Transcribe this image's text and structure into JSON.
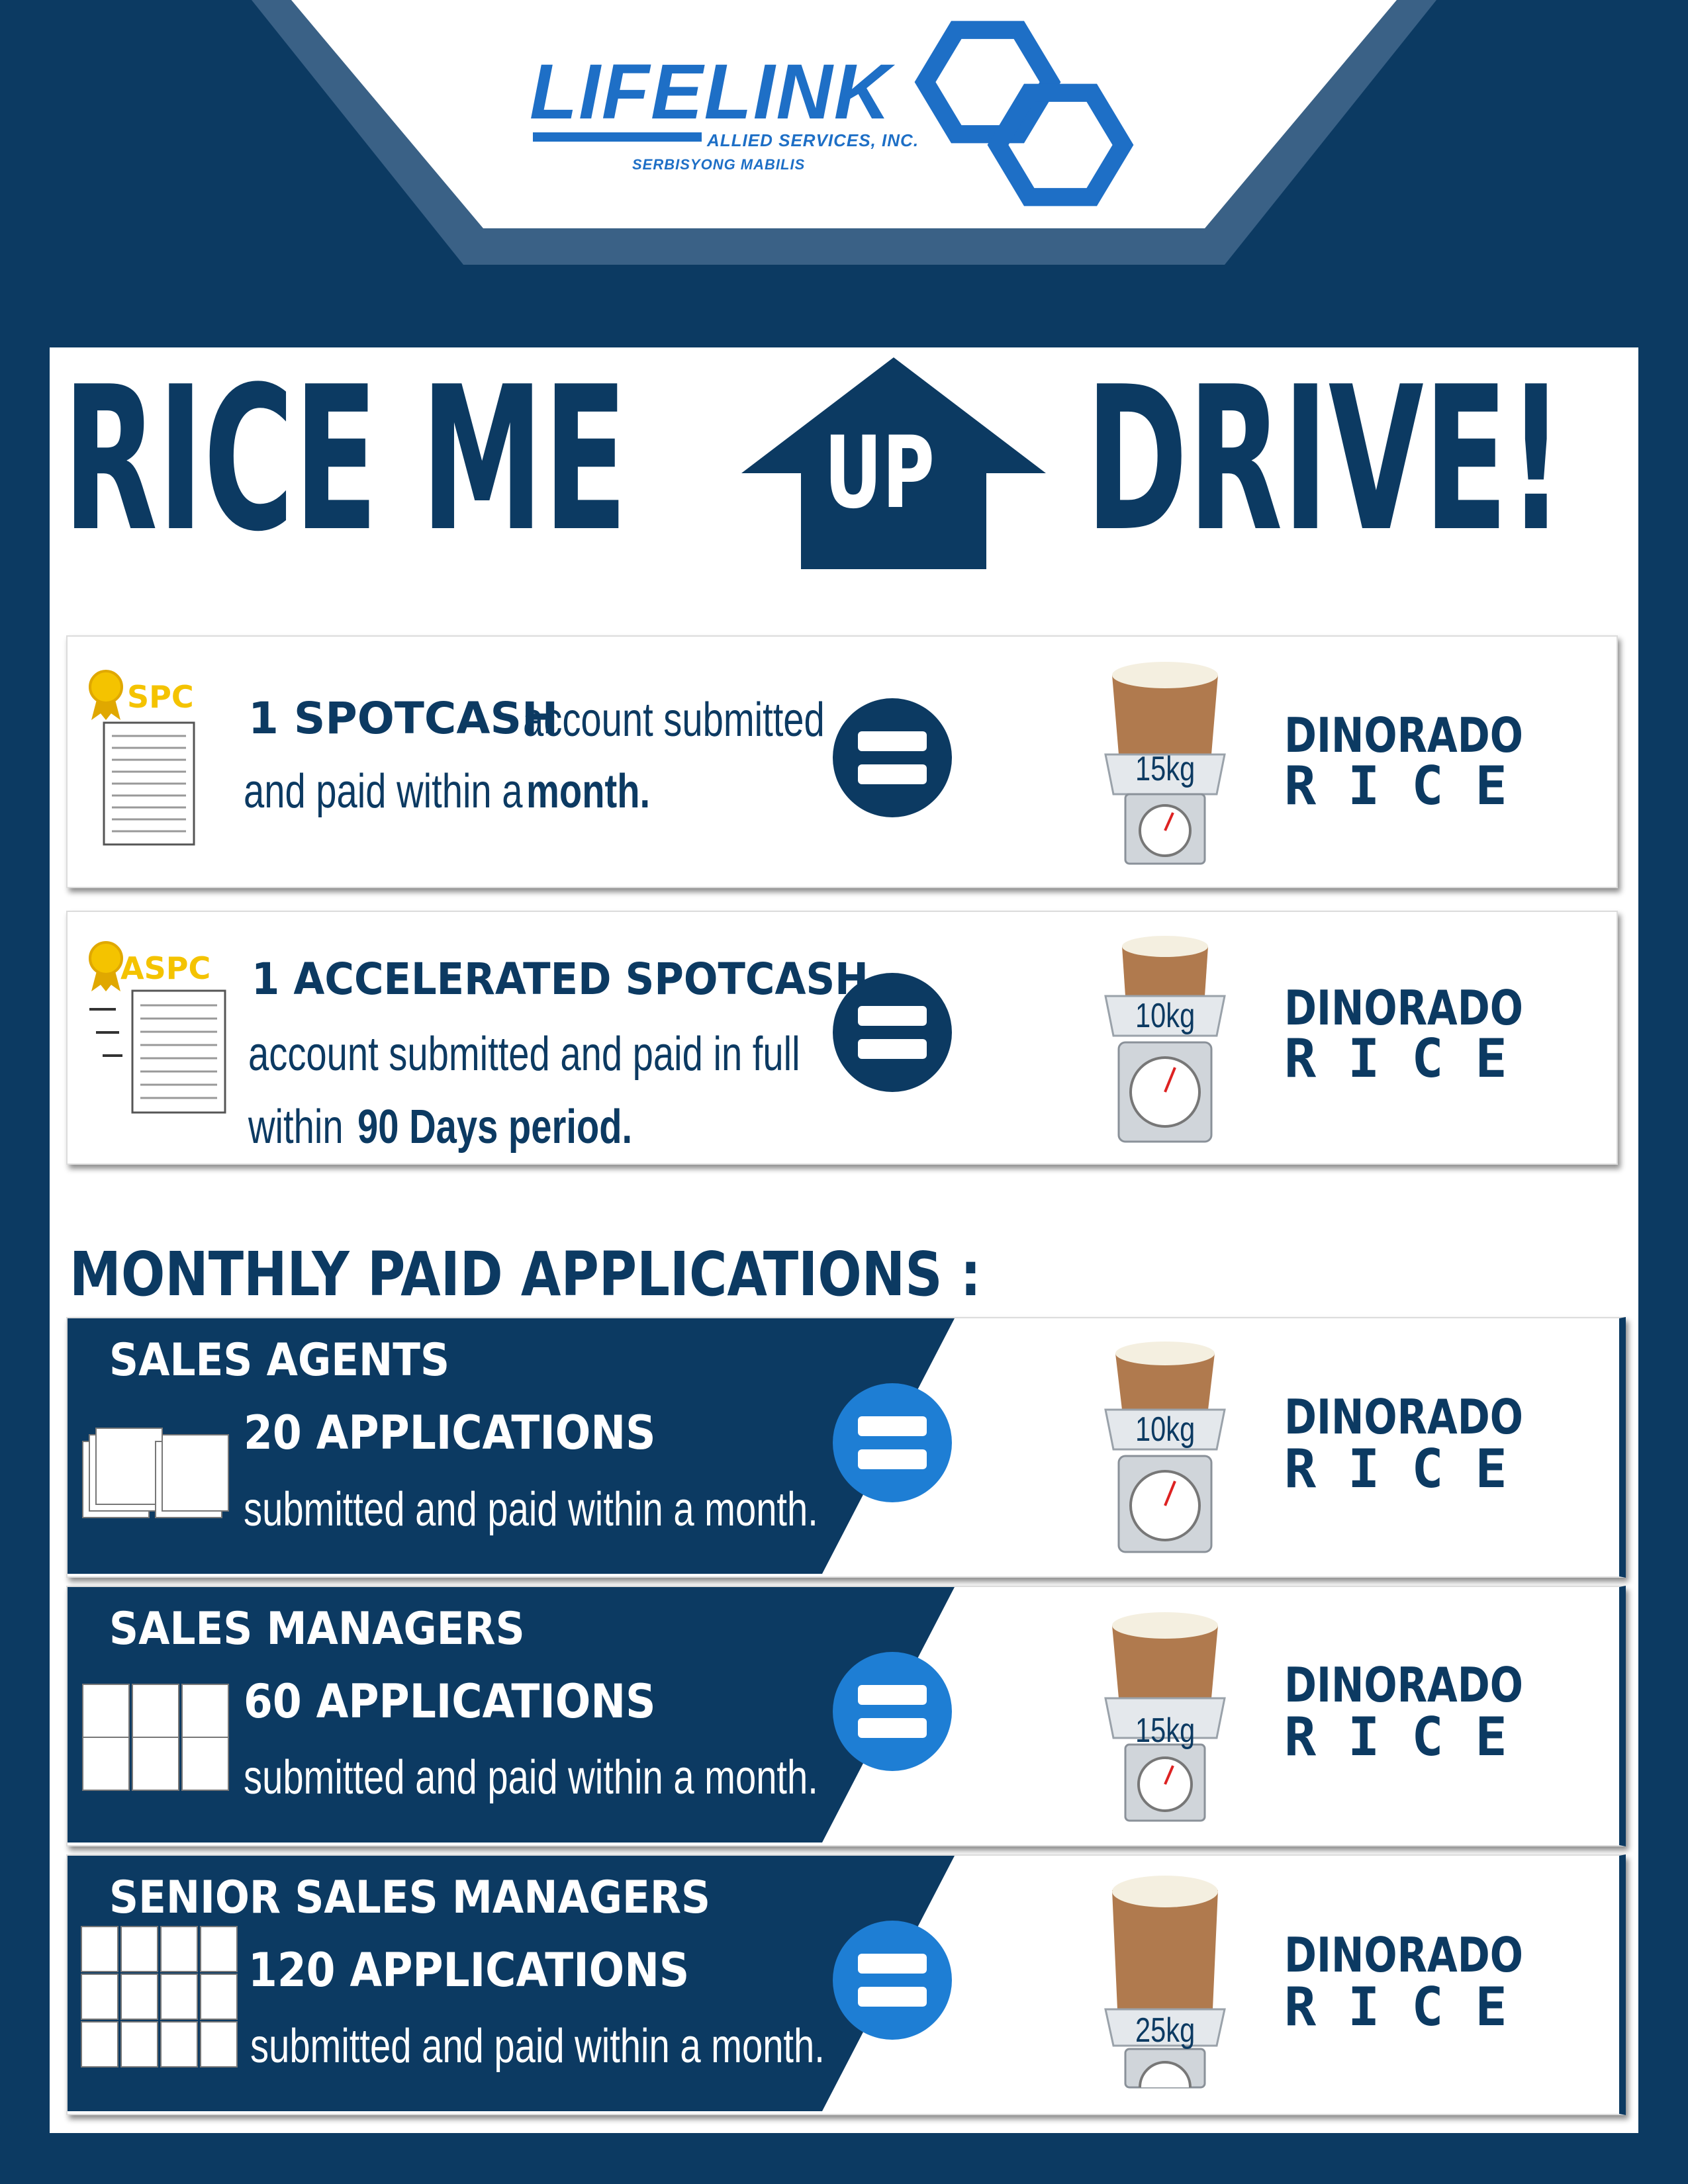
{
  "brand": {
    "name": "LIFELINK",
    "subtitle": "ALLIED SERVICES, INC.",
    "tagline": "SERBISYONG MABILIS"
  },
  "headline": {
    "part1": "RICE ME",
    "arrow_text": "UP",
    "part2": "DRIVE!"
  },
  "colors": {
    "navy": "#0c3a62",
    "blue": "#1e6fc6",
    "badge_gold": "#f4c300"
  },
  "promos": [
    {
      "badge": "SPC",
      "line1_bold": "1 SPOTCASH",
      "line1_rest": "account submitted",
      "line2_rest": "and paid within a",
      "line2_bold": "month.",
      "weight": "15kg",
      "reward_line1": "DINORADO",
      "reward_line2": "RICE"
    },
    {
      "badge": "ASPC",
      "line1_bold": "1 ACCELERATED SPOTCASH",
      "line2": "account submitted and paid in full",
      "line3_pre": "within",
      "line3_bold": "90 Days period.",
      "weight": "10kg",
      "reward_line1": "DINORADO",
      "reward_line2": "RICE"
    }
  ],
  "monthly": {
    "heading": "MONTHLY PAID APPLICATIONS :",
    "tiers": [
      {
        "name": "SALES AGENTS",
        "count": "20 APPLICATIONS",
        "desc": "submitted and paid within a month.",
        "weight": "10kg",
        "reward_line1": "DINORADO",
        "reward_line2": "RICE"
      },
      {
        "name": "SALES MANAGERS",
        "count": "60 APPLICATIONS",
        "desc": "submitted and paid within a month.",
        "weight": "15kg",
        "reward_line1": "DINORADO",
        "reward_line2": "RICE"
      },
      {
        "name": "SENIOR SALES MANAGERS",
        "count": "120 APPLICATIONS",
        "desc": "submitted and paid within a month.",
        "weight": "25kg",
        "reward_line1": "DINORADO",
        "reward_line2": "RICE"
      }
    ]
  }
}
